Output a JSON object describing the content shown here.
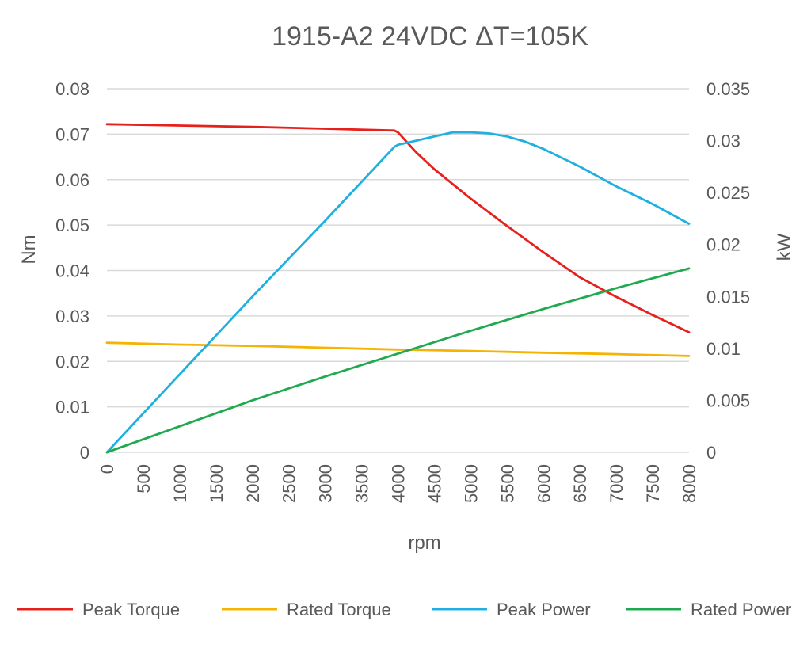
{
  "chart_data": {
    "type": "line",
    "title": "1915-A2 24VDC ΔT=105K",
    "xlabel": "rpm",
    "ylabel": "Nm",
    "y2label": "kW",
    "xlim": [
      0,
      8000
    ],
    "ylim": [
      0,
      0.08
    ],
    "y2lim": [
      0,
      0.035
    ],
    "x_ticks": [
      "0",
      "500",
      "1000",
      "1500",
      "2000",
      "2500",
      "3000",
      "3500",
      "4000",
      "4500",
      "5000",
      "5500",
      "6000",
      "6500",
      "7000",
      "7500",
      "8000"
    ],
    "y_ticks": [
      "0",
      "0.01",
      "0.02",
      "0.03",
      "0.04",
      "0.05",
      "0.06",
      "0.07",
      "0.08"
    ],
    "y2_ticks": [
      "0",
      "0.005",
      "0.01",
      "0.015",
      "0.02",
      "0.025",
      "0.03",
      "0.035"
    ],
    "grid": true,
    "legend_position": "bottom",
    "series": [
      {
        "name": "Peak Torque",
        "axis": "left",
        "color": "#e8201c",
        "x": [
          0,
          1000,
          2000,
          3000,
          3950,
          4000,
          4250,
          4500,
          5000,
          5500,
          6000,
          6500,
          7000,
          7500,
          8000
        ],
        "y": [
          0.0722,
          0.0719,
          0.0716,
          0.0712,
          0.0708,
          0.0704,
          0.066,
          0.0623,
          0.0558,
          0.0498,
          0.044,
          0.0385,
          0.0342,
          0.0302,
          0.0264
        ]
      },
      {
        "name": "Rated Torque",
        "axis": "left",
        "color": "#f4b400",
        "x": [
          0,
          1000,
          2000,
          3000,
          4000,
          5000,
          6000,
          7000,
          8000
        ],
        "y": [
          0.0241,
          0.0237,
          0.0234,
          0.023,
          0.0226,
          0.0223,
          0.0219,
          0.0216,
          0.0212
        ]
      },
      {
        "name": "Peak Power",
        "axis": "right",
        "color": "#1fb0e0",
        "x": [
          0,
          1000,
          2000,
          3000,
          3950,
          4000,
          4250,
          4500,
          4750,
          5000,
          5250,
          5500,
          5750,
          6000,
          6500,
          7000,
          7500,
          8000
        ],
        "y": [
          0,
          0.0075,
          0.015,
          0.0223,
          0.0294,
          0.0296,
          0.03,
          0.0304,
          0.0308,
          0.0308,
          0.0307,
          0.0304,
          0.0299,
          0.0292,
          0.0275,
          0.0256,
          0.0239,
          0.022
        ]
      },
      {
        "name": "Rated Power",
        "axis": "right",
        "color": "#1faa4f",
        "x": [
          0,
          1000,
          2000,
          3000,
          4000,
          5000,
          6000,
          7000,
          8000
        ],
        "y": [
          0,
          0.0025,
          0.005,
          0.0073,
          0.0095,
          0.0117,
          0.0138,
          0.0158,
          0.0177
        ]
      }
    ]
  }
}
